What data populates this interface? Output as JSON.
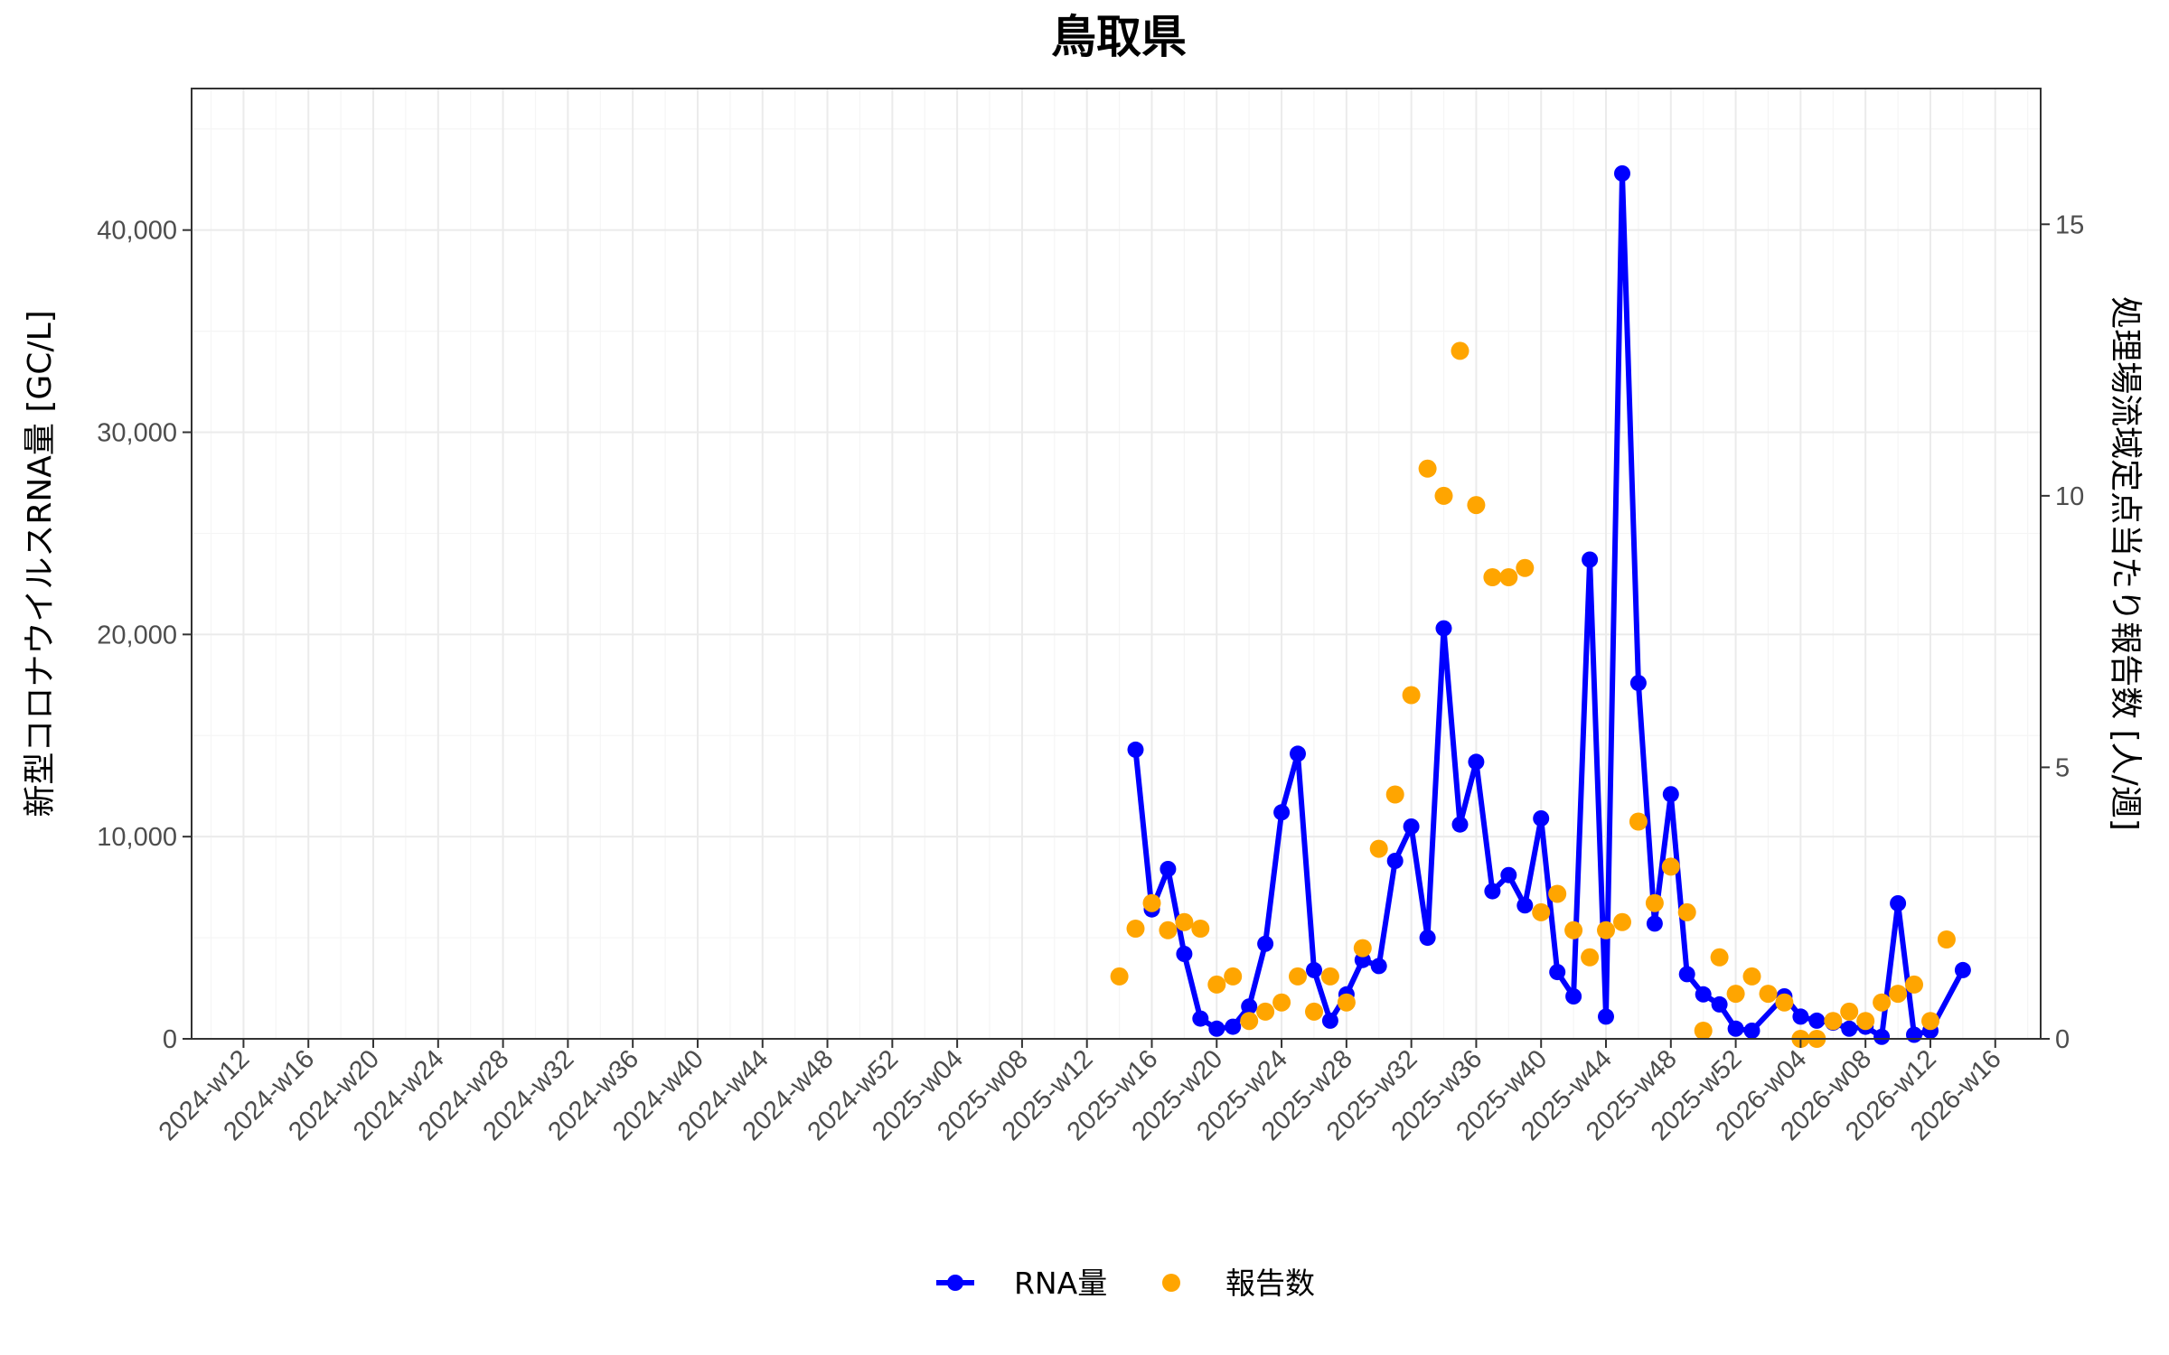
{
  "chart_data": {
    "type": "line",
    "title": "鳥取県",
    "ylabel_left": "新型コロナウイルスRNA量 [GC/L]",
    "ylabel_right": "処理場流域定点当たり報告数 [人/週]",
    "x_ticks": [
      "2024-w12",
      "2024-w16",
      "2024-w20",
      "2024-w24",
      "2024-w28",
      "2024-w32",
      "2024-w36",
      "2024-w40",
      "2024-w44",
      "2024-w48",
      "2024-w52",
      "2025-w04",
      "2025-w08",
      "2025-w12",
      "2025-w16",
      "2025-w20",
      "2025-w24",
      "2025-w28",
      "2025-w32",
      "2025-w36",
      "2025-w40",
      "2025-w44",
      "2025-w48",
      "2025-w52",
      "2026-w04",
      "2026-w08",
      "2026-w12",
      "2026-w16"
    ],
    "y_left_ticks": [
      "0",
      "10,000",
      "20,000",
      "30,000",
      "40,000"
    ],
    "y_left_tick_values": [
      0,
      10000,
      20000,
      30000,
      40000
    ],
    "y_right_ticks": [
      "0",
      "5",
      "10",
      "15"
    ],
    "y_right_tick_values": [
      0,
      5,
      10,
      15
    ],
    "ylim_left": [
      0,
      47000
    ],
    "ylim_right": [
      0,
      17.5
    ],
    "x_range_index": [
      -3.2,
      110.8
    ],
    "grid": true,
    "legend_position": "bottom",
    "series": [
      {
        "name": "RNA量",
        "axis": "left",
        "style": "line+points",
        "color": "#0000FF",
        "points": [
          [
            "2025-w15",
            14300
          ],
          [
            "2025-w16",
            6400
          ],
          [
            "2025-w17",
            8400
          ],
          [
            "2025-w18",
            4200
          ],
          [
            "2025-w19",
            1000
          ],
          [
            "2025-w20",
            500
          ],
          [
            "2025-w21",
            600
          ],
          [
            "2025-w22",
            1600
          ],
          [
            "2025-w23",
            4700
          ],
          [
            "2025-w24",
            11200
          ],
          [
            "2025-w25",
            14100
          ],
          [
            "2025-w26",
            3400
          ],
          [
            "2025-w27",
            900
          ],
          [
            "2025-w28",
            2200
          ],
          [
            "2025-w29",
            3900
          ],
          [
            "2025-w30",
            3600
          ],
          [
            "2025-w31",
            8800
          ],
          [
            "2025-w32",
            10500
          ],
          [
            "2025-w33",
            5000
          ],
          [
            "2025-w34",
            20300
          ],
          [
            "2025-w35",
            10600
          ],
          [
            "2025-w36",
            13700
          ],
          [
            "2025-w37",
            7300
          ],
          [
            "2025-w38",
            8100
          ],
          [
            "2025-w39",
            6600
          ],
          [
            "2025-w40",
            10900
          ],
          [
            "2025-w41",
            3300
          ],
          [
            "2025-w42",
            2100
          ],
          [
            "2025-w43",
            23700
          ],
          [
            "2025-w44",
            1100
          ],
          [
            "2025-w45",
            42800
          ],
          [
            "2025-w46",
            17600
          ],
          [
            "2025-w47",
            5700
          ],
          [
            "2025-w48",
            12100
          ],
          [
            "2025-w49",
            3200
          ],
          [
            "2025-w50",
            2200
          ],
          [
            "2025-w51",
            1700
          ],
          [
            "2025-w52",
            500
          ],
          [
            "2026-w01",
            400
          ],
          [
            "2026-w03",
            2100
          ],
          [
            "2026-w04",
            1100
          ],
          [
            "2026-w05",
            900
          ],
          [
            "2026-w06",
            800
          ],
          [
            "2026-w07",
            500
          ],
          [
            "2026-w08",
            600
          ],
          [
            "2026-w09",
            100
          ],
          [
            "2026-w10",
            6700
          ],
          [
            "2026-w11",
            200
          ],
          [
            "2026-w12",
            400
          ],
          [
            "2026-w14",
            3400
          ]
        ]
      },
      {
        "name": "報告数",
        "axis": "right",
        "style": "points",
        "color": "#FFA500",
        "points": [
          [
            "2025-w14",
            1.15
          ],
          [
            "2025-w15",
            2.03
          ],
          [
            "2025-w16",
            2.5
          ],
          [
            "2025-w17",
            2.0
          ],
          [
            "2025-w18",
            2.15
          ],
          [
            "2025-w19",
            2.03
          ],
          [
            "2025-w20",
            1.0
          ],
          [
            "2025-w21",
            1.15
          ],
          [
            "2025-w22",
            0.33
          ],
          [
            "2025-w23",
            0.5
          ],
          [
            "2025-w24",
            0.67
          ],
          [
            "2025-w25",
            1.15
          ],
          [
            "2025-w26",
            0.5
          ],
          [
            "2025-w27",
            1.15
          ],
          [
            "2025-w28",
            0.67
          ],
          [
            "2025-w29",
            1.67
          ],
          [
            "2025-w30",
            3.5
          ],
          [
            "2025-w31",
            4.5
          ],
          [
            "2025-w32",
            6.33
          ],
          [
            "2025-w33",
            10.5
          ],
          [
            "2025-w34",
            10.0
          ],
          [
            "2025-w35",
            12.67
          ],
          [
            "2025-w36",
            9.83
          ],
          [
            "2025-w37",
            8.5
          ],
          [
            "2025-w38",
            8.5
          ],
          [
            "2025-w39",
            8.67
          ],
          [
            "2025-w40",
            2.33
          ],
          [
            "2025-w41",
            2.67
          ],
          [
            "2025-w42",
            2.0
          ],
          [
            "2025-w43",
            1.5
          ],
          [
            "2025-w44",
            2.0
          ],
          [
            "2025-w45",
            2.15
          ],
          [
            "2025-w46",
            4.0
          ],
          [
            "2025-w47",
            2.5
          ],
          [
            "2025-w48",
            3.17
          ],
          [
            "2025-w49",
            2.33
          ],
          [
            "2025-w50",
            0.15
          ],
          [
            "2025-w51",
            1.5
          ],
          [
            "2025-w52",
            0.83
          ],
          [
            "2026-w01",
            1.15
          ],
          [
            "2026-w02",
            0.83
          ],
          [
            "2026-w03",
            0.67
          ],
          [
            "2026-w04",
            0.0
          ],
          [
            "2026-w05",
            0.0
          ],
          [
            "2026-w06",
            0.33
          ],
          [
            "2026-w07",
            0.5
          ],
          [
            "2026-w08",
            0.33
          ],
          [
            "2026-w09",
            0.67
          ],
          [
            "2026-w10",
            0.83
          ],
          [
            "2026-w11",
            1.0
          ],
          [
            "2026-w12",
            0.33
          ],
          [
            "2026-w13",
            1.83
          ]
        ]
      }
    ]
  }
}
